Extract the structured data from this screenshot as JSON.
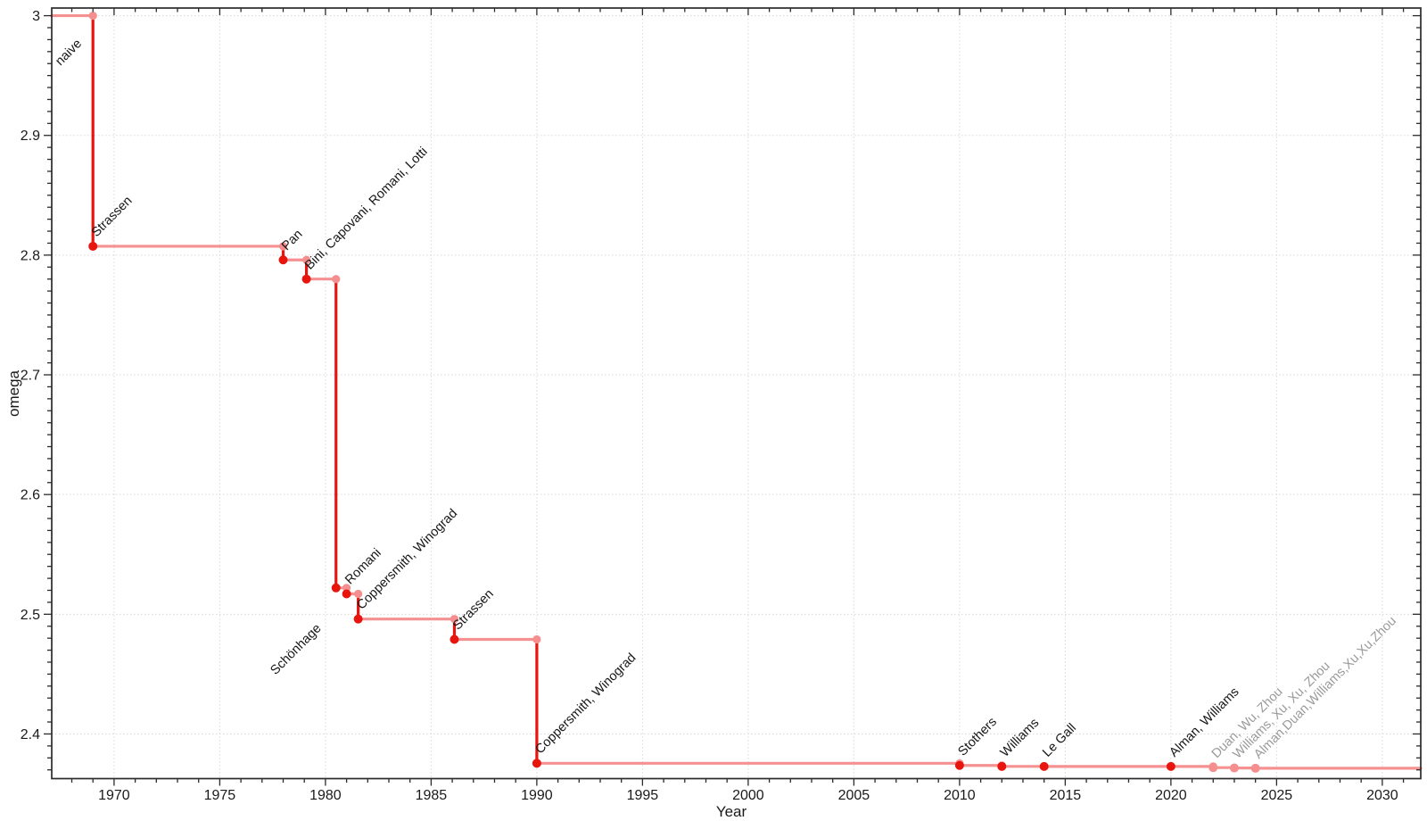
{
  "chart_data": {
    "type": "line",
    "subtype": "step-post",
    "title": "",
    "xlabel": "Year",
    "ylabel": "omega",
    "legend": null,
    "grid": "dotted-major",
    "x_view": [
      1967.05,
      2031.82
    ],
    "y_view": [
      2.3627,
      3.0064
    ],
    "x_ticks": {
      "values": [
        1970,
        1975,
        1980,
        1985,
        1990,
        1995,
        2000,
        2005,
        2010,
        2015,
        2020,
        2025,
        2030
      ],
      "labels": [
        "1970",
        "1975",
        "1980",
        "1985",
        "1990",
        "1995",
        "2000",
        "2005",
        "2010",
        "2015",
        "2020",
        "2025",
        "2030"
      ],
      "minor_step": 1
    },
    "y_ticks": {
      "values": [
        2.4,
        2.5,
        2.6,
        2.7,
        2.8,
        2.9,
        3
      ],
      "labels": [
        "2.4",
        "2.5",
        "2.6",
        "2.7",
        "2.8",
        "2.9",
        "3"
      ],
      "minor_step": 0.01
    },
    "colors": {
      "drop_line": "#e8150f",
      "flat_line": "#f59191",
      "major_marker": "#e8150f",
      "minor_marker": "#f58f8f",
      "major_label": "#161616",
      "minor_label": "#9a9a9a",
      "grid": "#d8d8d8",
      "axis": "#2b2b2b",
      "tick_label": "#1a1a1a"
    },
    "start": {
      "omega": 3.0,
      "label": "naive",
      "anchor": "end",
      "dx": -12,
      "dy": 32
    },
    "events": [
      {
        "year": 1969.0,
        "omega": 2.8074,
        "label": "Strassen",
        "major": true
      },
      {
        "year": 1978.0,
        "omega": 2.796,
        "label": "Pan",
        "major": true
      },
      {
        "year": 1979.1,
        "omega": 2.78,
        "label": "Bini, Capovani, Romani, Lotti",
        "major": true
      },
      {
        "year": 1980.5,
        "omega": 2.522,
        "label": "Schönhage",
        "major": true,
        "anchor": "end",
        "dx": -16,
        "dy": 46
      },
      {
        "year": 1981.0,
        "omega": 2.517,
        "label": "Romani",
        "major": true
      },
      {
        "year": 1981.55,
        "omega": 2.496,
        "label": "Coppersmith, Winograd",
        "major": true
      },
      {
        "year": 1986.1,
        "omega": 2.479,
        "label": "Strassen",
        "major": true
      },
      {
        "year": 1990.0,
        "omega": 2.3755,
        "label": "Coppersmith, Winograd",
        "major": true
      },
      {
        "year": 2010.0,
        "omega": 2.3737,
        "label": "Stothers",
        "major": true
      },
      {
        "year": 2012.0,
        "omega": 2.3729,
        "label": "Williams",
        "major": true
      },
      {
        "year": 2014.0,
        "omega": 2.37287,
        "label": "Le Gall",
        "major": true
      },
      {
        "year": 2020.0,
        "omega": 2.37286,
        "label": "Alman, Williams",
        "major": true
      },
      {
        "year": 2022.0,
        "omega": 2.37188,
        "label": "Duan, Wu, Zhou",
        "major": false
      },
      {
        "year": 2023.0,
        "omega": 2.37156,
        "label": "Williams, Xu, Xu, Zhou",
        "major": false
      },
      {
        "year": 2024.0,
        "omega": 2.37134,
        "label": "Alman,Duan,Williams,Xu,Xu,Zhou",
        "major": false
      }
    ]
  }
}
